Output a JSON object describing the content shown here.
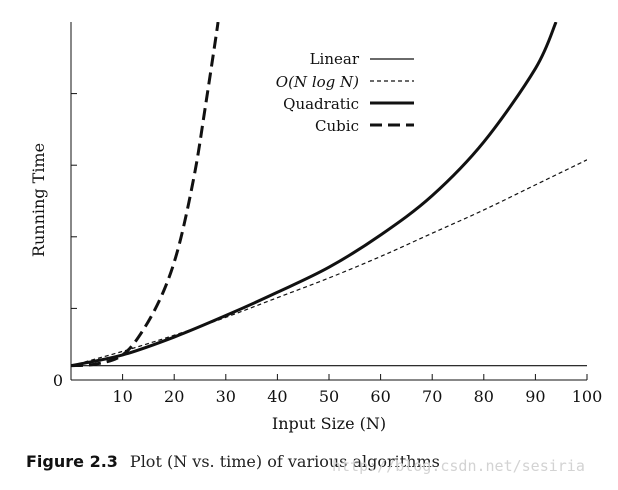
{
  "chart_data": {
    "type": "line",
    "xlabel": "Input Size (N)",
    "ylabel": "Running Time",
    "xlim": [
      0,
      100
    ],
    "ylim": [
      0,
      100
    ],
    "x_ticks": [
      "0",
      "10",
      "20",
      "30",
      "40",
      "50",
      "60",
      "70",
      "80",
      "90",
      "100"
    ],
    "y_ticks_labeled": [
      "0"
    ],
    "grid": false,
    "legend": {
      "position": "top-center",
      "entries": [
        "Linear",
        "O(N log N)",
        "Quadratic",
        "Cubic"
      ]
    },
    "series": [
      {
        "name": "Linear",
        "style": "solid-thin",
        "x": [
          0,
          100
        ],
        "y": [
          4,
          4
        ]
      },
      {
        "name": "O(N log N)",
        "style": "dashed-thin",
        "x": [
          0,
          10,
          20,
          30,
          40,
          50,
          60,
          70,
          80,
          90,
          100
        ],
        "y": [
          4,
          8,
          12.5,
          17.5,
          23,
          28.5,
          34.5,
          41,
          47.5,
          54.5,
          61.5
        ]
      },
      {
        "name": "Quadratic",
        "style": "solid-thick",
        "x": [
          0,
          10,
          20,
          30,
          40,
          50,
          60,
          70,
          80,
          90,
          94
        ],
        "y": [
          4,
          7,
          12,
          18,
          24.5,
          31.5,
          40.5,
          51.5,
          66.5,
          87,
          100
        ]
      },
      {
        "name": "Cubic",
        "style": "dashed-thick",
        "x": [
          0,
          5,
          10,
          14,
          18,
          21,
          24,
          26,
          28,
          28.5
        ],
        "y": [
          4,
          4.5,
          7,
          14,
          25,
          38,
          58,
          76,
          95,
          100
        ]
      }
    ]
  },
  "caption": {
    "figure_label": "Figure 2.3",
    "text": "Plot (N vs. time) of various algorithms"
  },
  "watermark": "http://blog.csdn.net/sesiria"
}
